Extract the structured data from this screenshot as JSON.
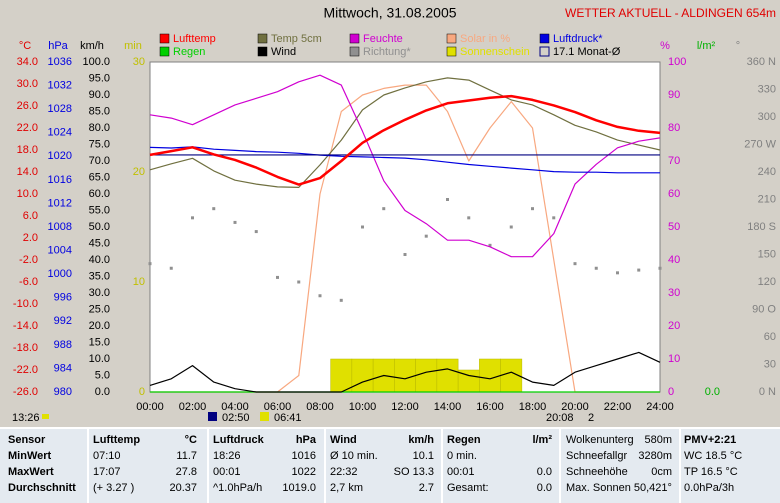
{
  "chart_data": {
    "type": "multi-axis-line",
    "title": "Mittwoch, 31.08.2005",
    "subtitle": "WETTER AKTUELL - ALDINGEN 654m",
    "xlim": [
      0,
      24
    ],
    "xticks": [
      {
        "value": 0,
        "label": "00:00"
      },
      {
        "value": 2,
        "label": "02:00"
      },
      {
        "value": 4,
        "label": "04:00"
      },
      {
        "value": 6,
        "label": "06:00"
      },
      {
        "value": 8,
        "label": "08:00"
      },
      {
        "value": 10,
        "label": "10:00"
      },
      {
        "value": 12,
        "label": "12:00"
      },
      {
        "value": 14,
        "label": "14:00"
      },
      {
        "value": 16,
        "label": "16:00"
      },
      {
        "value": 18,
        "label": "18:00"
      },
      {
        "value": 20,
        "label": "20:00"
      },
      {
        "value": 22,
        "label": "22:00"
      },
      {
        "value": 24,
        "label": "24:00"
      }
    ],
    "x": [
      0,
      1,
      2,
      3,
      4,
      5,
      6,
      7,
      8,
      9,
      10,
      11,
      12,
      13,
      14,
      15,
      16,
      17,
      18,
      19,
      20,
      21,
      22,
      23,
      24
    ],
    "grid": true,
    "axes": [
      {
        "label": "°C",
        "color": "#e00000",
        "lim": [
          -26,
          34
        ],
        "ticks": [
          {
            "value": 34,
            "label": "34.0"
          },
          {
            "value": 30,
            "label": "30.0"
          },
          {
            "value": 26,
            "label": "26.0"
          },
          {
            "value": 22,
            "label": "22.0"
          },
          {
            "value": 18,
            "label": "18.0"
          },
          {
            "value": 14,
            "label": "14.0"
          },
          {
            "value": 10,
            "label": "10.0"
          },
          {
            "value": 6,
            "label": "6.0"
          },
          {
            "value": 2,
            "label": "2.0"
          },
          {
            "value": -2,
            "label": "-2.0"
          },
          {
            "value": -6,
            "label": "-6.0"
          },
          {
            "value": -10,
            "label": "-10.0"
          },
          {
            "value": -14,
            "label": "-14.0"
          },
          {
            "value": -18,
            "label": "-18.0"
          },
          {
            "value": -22,
            "label": "-22.0"
          },
          {
            "value": -26,
            "label": "-26.0"
          }
        ]
      },
      {
        "label": "hPa",
        "color": "#0000e0",
        "lim": [
          980,
          1036
        ],
        "ticks": [
          1036,
          1032,
          1028,
          1024,
          1020,
          1016,
          1012,
          1008,
          1004,
          1000,
          996,
          992,
          988,
          984,
          980
        ]
      },
      {
        "label": "km/h",
        "color": "#000000",
        "lim": [
          0,
          100
        ],
        "ticks": [
          {
            "value": 100,
            "label": "100.0"
          },
          {
            "value": 95,
            "label": "95.0"
          },
          {
            "value": 90,
            "label": "90.0"
          },
          {
            "value": 85,
            "label": "85.0"
          },
          {
            "value": 80,
            "label": "80.0"
          },
          {
            "value": 75,
            "label": "75.0"
          },
          {
            "value": 70,
            "label": "70.0"
          },
          {
            "value": 65,
            "label": "65.0"
          },
          {
            "value": 60,
            "label": "60.0"
          },
          {
            "value": 55,
            "label": "55.0"
          },
          {
            "value": 50,
            "label": "50.0"
          },
          {
            "value": 45,
            "label": "45.0"
          },
          {
            "value": 40,
            "label": "40.0"
          },
          {
            "value": 35,
            "label": "35.0"
          },
          {
            "value": 30,
            "label": "30.0"
          },
          {
            "value": 25,
            "label": "25.0"
          },
          {
            "value": 20,
            "label": "20.0"
          },
          {
            "value": 15,
            "label": "15.0"
          },
          {
            "value": 10,
            "label": "10.0"
          },
          {
            "value": 5,
            "label": "5.0"
          },
          {
            "value": 0,
            "label": "0.0"
          }
        ]
      },
      {
        "label": "min",
        "color": "#c0c000",
        "lim": [
          0,
          30
        ],
        "ticks": [
          30,
          20,
          10,
          0
        ]
      },
      {
        "label": "%",
        "color": "#d000d0",
        "lim": [
          0,
          100
        ],
        "ticks": [
          100,
          90,
          80,
          70,
          60,
          50,
          40,
          30,
          20,
          10,
          0
        ]
      },
      {
        "label": "l/m²",
        "color": "#00b000",
        "lim": [
          0,
          10
        ],
        "ticks": [
          {
            "value": 0,
            "label": "0.0"
          }
        ]
      },
      {
        "label": "°",
        "color": "#808080",
        "lim": [
          0,
          360
        ],
        "ticks": [
          {
            "value": 360,
            "label": "360 N"
          },
          330,
          300,
          {
            "value": 270,
            "label": "270 W"
          },
          240,
          210,
          {
            "value": 180,
            "label": "180 S"
          },
          150,
          120,
          {
            "value": 90,
            "label": "90 O"
          },
          60,
          30,
          {
            "value": 0,
            "label": "0 N"
          }
        ]
      }
    ],
    "series": [
      {
        "name": "Lufttemp",
        "color": "#ff0000",
        "axis": 0,
        "style": "line",
        "values": [
          17.1,
          17.8,
          18.5,
          17.2,
          16.2,
          14.8,
          13.1,
          11.7,
          12.9,
          16.0,
          19.3,
          21.6,
          23.5,
          25.2,
          26.5,
          27.0,
          27.5,
          27.8,
          27.1,
          26.1,
          24.9,
          23.4,
          22.2,
          21.5,
          21.1
        ]
      },
      {
        "name": "Temp 5cm",
        "color": "#707040",
        "axis": 0,
        "style": "line",
        "values": [
          14.4,
          15.5,
          16.5,
          14.2,
          12.5,
          11.8,
          11.3,
          11.2,
          15.3,
          19.8,
          25.3,
          28.0,
          29.3,
          30.4,
          31.1,
          30.7,
          28.9,
          27.1,
          26.2,
          24.4,
          22.5,
          21.3,
          19.8,
          18.9,
          18.0
        ]
      },
      {
        "name": "Feuchte",
        "color": "#d000d0",
        "axis": 4,
        "style": "line",
        "values": [
          84,
          83,
          81,
          84,
          87,
          89,
          91,
          94,
          96,
          93,
          79,
          64,
          55,
          51,
          46,
          46,
          44,
          41,
          41,
          48,
          63,
          69,
          74,
          76,
          77
        ]
      },
      {
        "name": "Solar in %",
        "color": "#f8a880",
        "axis": 4,
        "style": "line",
        "values": [
          0,
          0,
          0,
          0,
          0,
          0,
          0,
          5,
          60,
          85,
          90,
          92,
          93,
          93,
          85,
          70,
          80,
          88,
          80,
          40,
          0,
          0,
          0,
          0,
          0
        ]
      },
      {
        "name": "Luftdruck*",
        "color": "#0000e0",
        "axis": 1,
        "style": "line",
        "values": [
          1021.5,
          1021.4,
          1021.6,
          1021.2,
          1021.0,
          1020.8,
          1020.7,
          1020.5,
          1020.2,
          1020.0,
          1019.9,
          1019.8,
          1019.7,
          1019.4,
          1019.0,
          1018.6,
          1018.3,
          1018.0,
          1017.7,
          1017.4,
          1017.3,
          1017.3,
          1017.2,
          1017.2,
          1017.2
        ]
      },
      {
        "name": "Regen",
        "color": "#00d000",
        "axis": 5,
        "style": "line",
        "values": [
          0,
          0,
          0,
          0,
          0,
          0,
          0,
          0,
          0,
          0,
          0,
          0,
          0,
          0,
          0,
          0,
          0,
          0,
          0,
          0,
          0,
          0,
          0,
          0,
          0
        ]
      },
      {
        "name": "Wind",
        "color": "#000000",
        "axis": 2,
        "style": "line",
        "values": [
          2,
          4,
          8,
          3,
          1,
          0,
          0,
          0,
          0,
          0,
          3,
          5,
          4,
          6,
          7,
          5,
          4,
          6,
          3,
          2,
          6,
          8,
          10,
          12,
          9
        ]
      },
      {
        "name": "Richtung*",
        "color": "#909090",
        "axis": 6,
        "style": "dots",
        "values": [
          140,
          135,
          190,
          200,
          185,
          175,
          125,
          120,
          105,
          100,
          180,
          200,
          150,
          170,
          210,
          190,
          160,
          180,
          200,
          190,
          140,
          135,
          130,
          133,
          135
        ]
      },
      {
        "name": "Sonnenschein",
        "color": "#e0e000",
        "axis": 3,
        "style": "bars",
        "values": [
          0,
          0,
          0,
          0,
          0,
          0,
          0,
          0,
          0,
          3,
          3,
          3,
          3,
          3,
          3,
          2,
          3,
          3,
          0,
          0,
          0,
          0,
          0,
          0,
          0
        ]
      },
      {
        "name": "17.1 Monat-Ø",
        "color": "#000080",
        "axis": 0,
        "style": "hline",
        "value": 17.1
      }
    ],
    "annotations": [
      "13:26",
      "02:50",
      "06:41",
      "20:08",
      "2"
    ]
  },
  "table": {
    "rows": [
      [
        "Sensor",
        "Lufttemp",
        "°C",
        "Luftdruck",
        "hPa",
        "Wind",
        "km/h",
        "Regen",
        "l/m²",
        "Wolkenunterg",
        "580m",
        "PMV+2:21"
      ],
      [
        "MinWert",
        "07:10",
        "11.7",
        "18:26",
        "1016",
        "Ø 10 min.",
        "10.1",
        "0 min.",
        null,
        "Schneefallgr",
        "3280m",
        "WC 18.5 °C"
      ],
      [
        "MaxWert",
        "17:07",
        "27.8",
        "00:01",
        "1022",
        "22:32",
        "SO 13.3",
        "00:01",
        "0.0",
        "Schneehöhe",
        "0cm",
        "TP 16.5 °C"
      ],
      [
        "Durchschnitt",
        "(+ 3.27 )",
        "20.37",
        "^1.0hPa/h",
        "1019.0",
        "2,7 km",
        "2.7",
        "Gesamt:",
        "0.0",
        "Max. Sonnen 50,421°",
        null,
        "0.0hPa/3h"
      ]
    ]
  }
}
